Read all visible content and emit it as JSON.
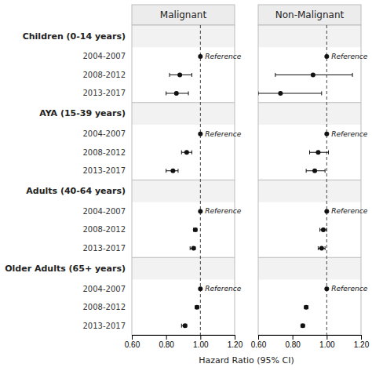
{
  "chart_data": {
    "type": "forest",
    "xlabel": "Hazard Ratio (95% CI)",
    "xlim": [
      0.6,
      1.2
    ],
    "xticks": [
      {
        "value": 0.6,
        "label": "0.60"
      },
      {
        "value": 0.8,
        "label": "0.80"
      },
      {
        "value": 1.0,
        "label": "1.00"
      },
      {
        "value": 1.2,
        "label": "1.20"
      }
    ],
    "ref_line": 1.0,
    "color": "#111111",
    "reference_label": "Reference",
    "groups": [
      {
        "label": "Children (0-14 years)",
        "periods": [
          "2004-2007",
          "2008-2012",
          "2013-2017"
        ]
      },
      {
        "label": "AYA (15-39 years)",
        "periods": [
          "2004-2007",
          "2008-2012",
          "2013-2017"
        ]
      },
      {
        "label": "Adults (40-64 years)",
        "periods": [
          "2004-2007",
          "2008-2012",
          "2013-2017"
        ]
      },
      {
        "label": "Older Adults (65+ years)",
        "periods": [
          "2004-2007",
          "2008-2012",
          "2013-2017"
        ]
      }
    ],
    "series": [
      {
        "name": "Malignant",
        "values": [
          1.0,
          0.88,
          0.86,
          1.0,
          0.92,
          0.84,
          1.0,
          0.97,
          0.96,
          1.0,
          0.98,
          0.91
        ],
        "ci_low": [
          null,
          0.82,
          0.8,
          null,
          0.89,
          0.8,
          null,
          0.96,
          0.94,
          null,
          0.97,
          0.89
        ],
        "ci_high": [
          null,
          0.95,
          0.93,
          null,
          0.95,
          0.87,
          null,
          0.98,
          0.97,
          null,
          0.99,
          0.92
        ],
        "reference": [
          true,
          false,
          false,
          true,
          false,
          false,
          true,
          false,
          false,
          true,
          false,
          false
        ]
      },
      {
        "name": "Non-Malignant",
        "values": [
          1.0,
          0.92,
          0.73,
          1.0,
          0.95,
          0.93,
          1.0,
          0.98,
          0.97,
          1.0,
          0.88,
          0.86
        ],
        "ci_low": [
          null,
          0.7,
          0.6,
          null,
          0.9,
          0.88,
          null,
          0.96,
          0.95,
          null,
          0.87,
          0.85
        ],
        "ci_high": [
          null,
          1.15,
          0.97,
          null,
          1.01,
          0.99,
          null,
          1.0,
          0.99,
          null,
          0.89,
          0.87
        ],
        "reference": [
          true,
          false,
          false,
          true,
          false,
          false,
          true,
          false,
          false,
          true,
          false,
          false
        ]
      }
    ]
  }
}
